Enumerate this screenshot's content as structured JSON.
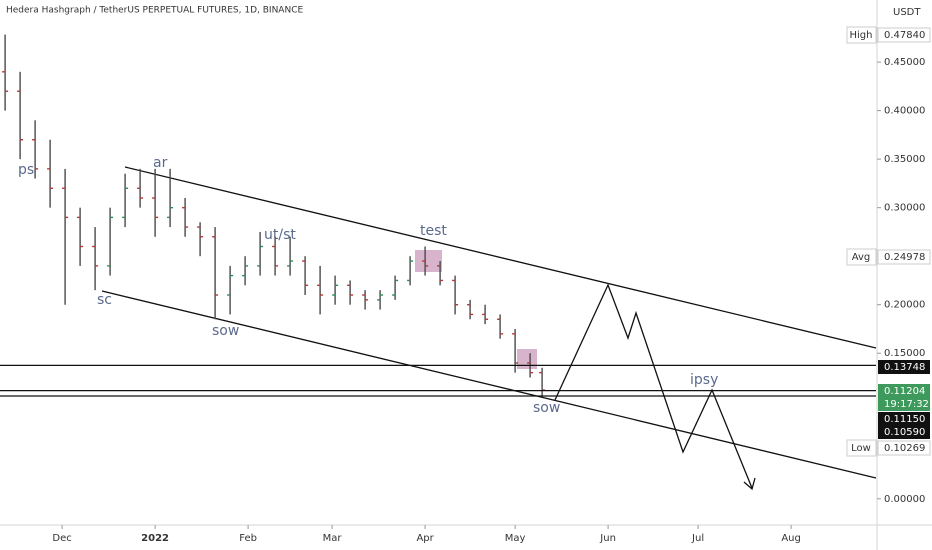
{
  "chart_data": {
    "type": "ohlc",
    "title": "Hedera Hashgraph / TetherUS PERPETUAL FUTURES, 1D, BINANCE",
    "currency": "USDT",
    "color": "#4a4a4a",
    "x": [
      -19,
      -14,
      -9,
      -4,
      1,
      6,
      11,
      16,
      21,
      26,
      31,
      36,
      41,
      46,
      51,
      56,
      61,
      66,
      71,
      76,
      81,
      86,
      91,
      96,
      101,
      106,
      111,
      116,
      121,
      126,
      131,
      136,
      141,
      146,
      151,
      156,
      160
    ],
    "ohlc": [
      [
        0.44,
        0.4784,
        0.4,
        0.42
      ],
      [
        0.42,
        0.44,
        0.35,
        0.37
      ],
      [
        0.37,
        0.39,
        0.33,
        0.34
      ],
      [
        0.34,
        0.37,
        0.3,
        0.32
      ],
      [
        0.32,
        0.34,
        0.2,
        0.29
      ],
      [
        0.29,
        0.3,
        0.24,
        0.26
      ],
      [
        0.26,
        0.28,
        0.215,
        0.24
      ],
      [
        0.24,
        0.3,
        0.23,
        0.29
      ],
      [
        0.29,
        0.335,
        0.28,
        0.32
      ],
      [
        0.32,
        0.34,
        0.3,
        0.31
      ],
      [
        0.31,
        0.34,
        0.27,
        0.29
      ],
      [
        0.29,
        0.34,
        0.28,
        0.3
      ],
      [
        0.3,
        0.31,
        0.27,
        0.28
      ],
      [
        0.28,
        0.285,
        0.25,
        0.27
      ],
      [
        0.27,
        0.28,
        0.185,
        0.21
      ],
      [
        0.21,
        0.24,
        0.19,
        0.23
      ],
      [
        0.23,
        0.25,
        0.22,
        0.24
      ],
      [
        0.24,
        0.275,
        0.23,
        0.26
      ],
      [
        0.26,
        0.27,
        0.23,
        0.24
      ],
      [
        0.24,
        0.27,
        0.23,
        0.245
      ],
      [
        0.245,
        0.25,
        0.21,
        0.22
      ],
      [
        0.22,
        0.24,
        0.19,
        0.21
      ],
      [
        0.21,
        0.23,
        0.2,
        0.22
      ],
      [
        0.22,
        0.225,
        0.2,
        0.21
      ],
      [
        0.21,
        0.215,
        0.195,
        0.205
      ],
      [
        0.205,
        0.215,
        0.195,
        0.21
      ],
      [
        0.21,
        0.23,
        0.205,
        0.225
      ],
      [
        0.225,
        0.25,
        0.22,
        0.245
      ],
      [
        0.245,
        0.26,
        0.23,
        0.24
      ],
      [
        0.24,
        0.245,
        0.22,
        0.225
      ],
      [
        0.225,
        0.23,
        0.19,
        0.2
      ],
      [
        0.2,
        0.205,
        0.185,
        0.19
      ],
      [
        0.19,
        0.2,
        0.18,
        0.185
      ],
      [
        0.185,
        0.19,
        0.165,
        0.17
      ],
      [
        0.17,
        0.175,
        0.13,
        0.14
      ],
      [
        0.14,
        0.15,
        0.125,
        0.13
      ],
      [
        0.13,
        0.135,
        0.1059,
        0.11204
      ]
    ],
    "xlim": [
      -20.7,
      271.3
    ],
    "xticks": [
      {
        "value": 0,
        "label": "Dec"
      },
      {
        "value": 31,
        "label": "2022"
      },
      {
        "value": 62,
        "label": "Feb"
      },
      {
        "value": 90,
        "label": "Mar"
      },
      {
        "value": 121,
        "label": "Apr"
      },
      {
        "value": 151,
        "label": "May"
      },
      {
        "value": 182,
        "label": "Jun"
      },
      {
        "value": 212,
        "label": "Jul"
      },
      {
        "value": 243,
        "label": "Aug"
      }
    ],
    "ylim": [
      -0.027,
      0.514
    ],
    "yticks": [
      {
        "value": 0.45,
        "label": "0.45000"
      },
      {
        "value": 0.4,
        "label": "0.40000"
      },
      {
        "value": 0.35,
        "label": "0.35000"
      },
      {
        "value": 0.3,
        "label": "0.30000"
      },
      {
        "value": 0.2,
        "label": "0.20000"
      },
      {
        "value": 0.15,
        "label": "0.15000"
      },
      {
        "value": 0,
        "label": "0.00000"
      }
    ],
    "price_tags": [
      {
        "name": "High",
        "value": 0.4784,
        "label": "0.47840"
      },
      {
        "name": "Avg",
        "value": 0.24978,
        "label": "0.24978"
      },
      {
        "value": 0.13748,
        "label": "0.13748"
      },
      {
        "value": 0.11204,
        "label": "0.11204",
        "countdown": "19:17:32"
      },
      {
        "value": 0.1115,
        "label": "0.11150"
      },
      {
        "value": 0.1059,
        "label": "0.10590"
      },
      {
        "name": "Low",
        "value": 0.10269,
        "label": "0.10269"
      }
    ],
    "annotations": [
      "ps",
      "sc",
      "ar",
      "sow",
      "ut/st",
      "test",
      "sow",
      "ipsy"
    ]
  }
}
